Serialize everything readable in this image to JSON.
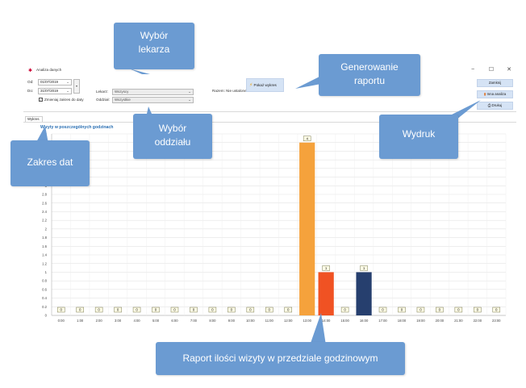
{
  "window": {
    "title": "Analiza danych",
    "controls": [
      "−",
      "☐",
      "✕"
    ]
  },
  "filters": {
    "from_label": "Od:",
    "from_value": "01/07/2019",
    "to_label": "Do:",
    "to_value": "31/07/2019",
    "remember_label": "Zmieniaj zakres do daty",
    "doctor_label": "Lekarz:",
    "doctor_value": "Wszyscy",
    "branch_label": "Oddział:",
    "branch_value": "Wszystkie",
    "total_label": "Razem: Nie ustalone",
    "show_chart_label": "Pokaż wykres"
  },
  "right_buttons": {
    "close": "Zamknij",
    "other_analysis": "Inna analiza",
    "print": "Drukuj"
  },
  "tab": {
    "label": "Wykres"
  },
  "chart_data": {
    "type": "bar",
    "title": "Wizyty w poszczególnych godzinach",
    "categories": [
      "0:00",
      "1:00",
      "2:00",
      "3:00",
      "4:00",
      "5:00",
      "6:00",
      "7:00",
      "8:00",
      "9:00",
      "10:00",
      "11:00",
      "12:00",
      "13:00",
      "14:00",
      "15:00",
      "16:00",
      "17:00",
      "18:00",
      "19:00",
      "20:00",
      "21:00",
      "22:00",
      "23:00"
    ],
    "values": [
      0,
      0,
      0,
      0,
      0,
      0,
      0,
      0,
      0,
      0,
      0,
      0,
      0,
      4,
      1,
      0,
      1,
      0,
      0,
      0,
      0,
      0,
      0,
      0
    ],
    "bar_colors": {
      "13": "#f5a23c",
      "14": "#f05223",
      "16": "#263f6e"
    },
    "ylim": [
      0,
      4.2
    ],
    "yticks": [
      "0",
      "0.2",
      "0.4",
      "0.6",
      "0.8",
      "1",
      "1.2",
      "1.4",
      "1.6",
      "1.8",
      "2",
      "2.2",
      "2.4",
      "2.6",
      "2.8",
      "3",
      "3.2",
      "3.4",
      "3.6",
      "3.8",
      "4",
      "4.2"
    ],
    "grid": true,
    "legend": "none"
  },
  "callouts": {
    "doctor": [
      "Wybór",
      "lekarza"
    ],
    "report": [
      "Generowanie",
      "raportu"
    ],
    "branch": [
      "Wybór",
      "oddziału"
    ],
    "dates": [
      "Zakres dat"
    ],
    "print": [
      "Wydruk"
    ],
    "hours": [
      "Raport ilości wizyty w przedziale godzinowym"
    ]
  },
  "colors": {
    "callout": "#6b9bd2",
    "accent": "#2a6fb3"
  }
}
